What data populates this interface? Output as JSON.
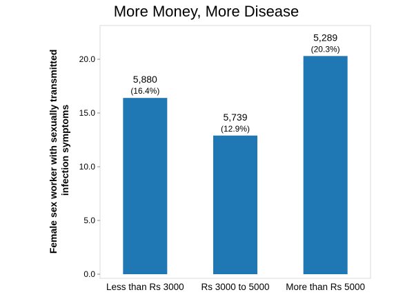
{
  "chart_data": {
    "type": "bar",
    "title": "More Money, More Disease",
    "ylabel_lines": [
      "Female sex worker with sexually transmitted",
      "infection symptoms"
    ],
    "xlabel": "",
    "categories": [
      "Less than Rs 3000",
      "Rs 3000 to 5000",
      "More than Rs 5000"
    ],
    "values": [
      16.4,
      12.9,
      20.3
    ],
    "counts": [
      "5,880",
      "5,739",
      "5,289"
    ],
    "percent_labels": [
      "(16.4%)",
      "(12.9%)",
      "(20.3%)"
    ],
    "yticks": [
      "0.0",
      "5.0",
      "10.0",
      "15.0",
      "20.0"
    ],
    "ytick_values": [
      0,
      5,
      10,
      15,
      20
    ],
    "ylim": [
      0,
      23.5
    ],
    "bar_color": "#1f77b4",
    "grid": false
  }
}
